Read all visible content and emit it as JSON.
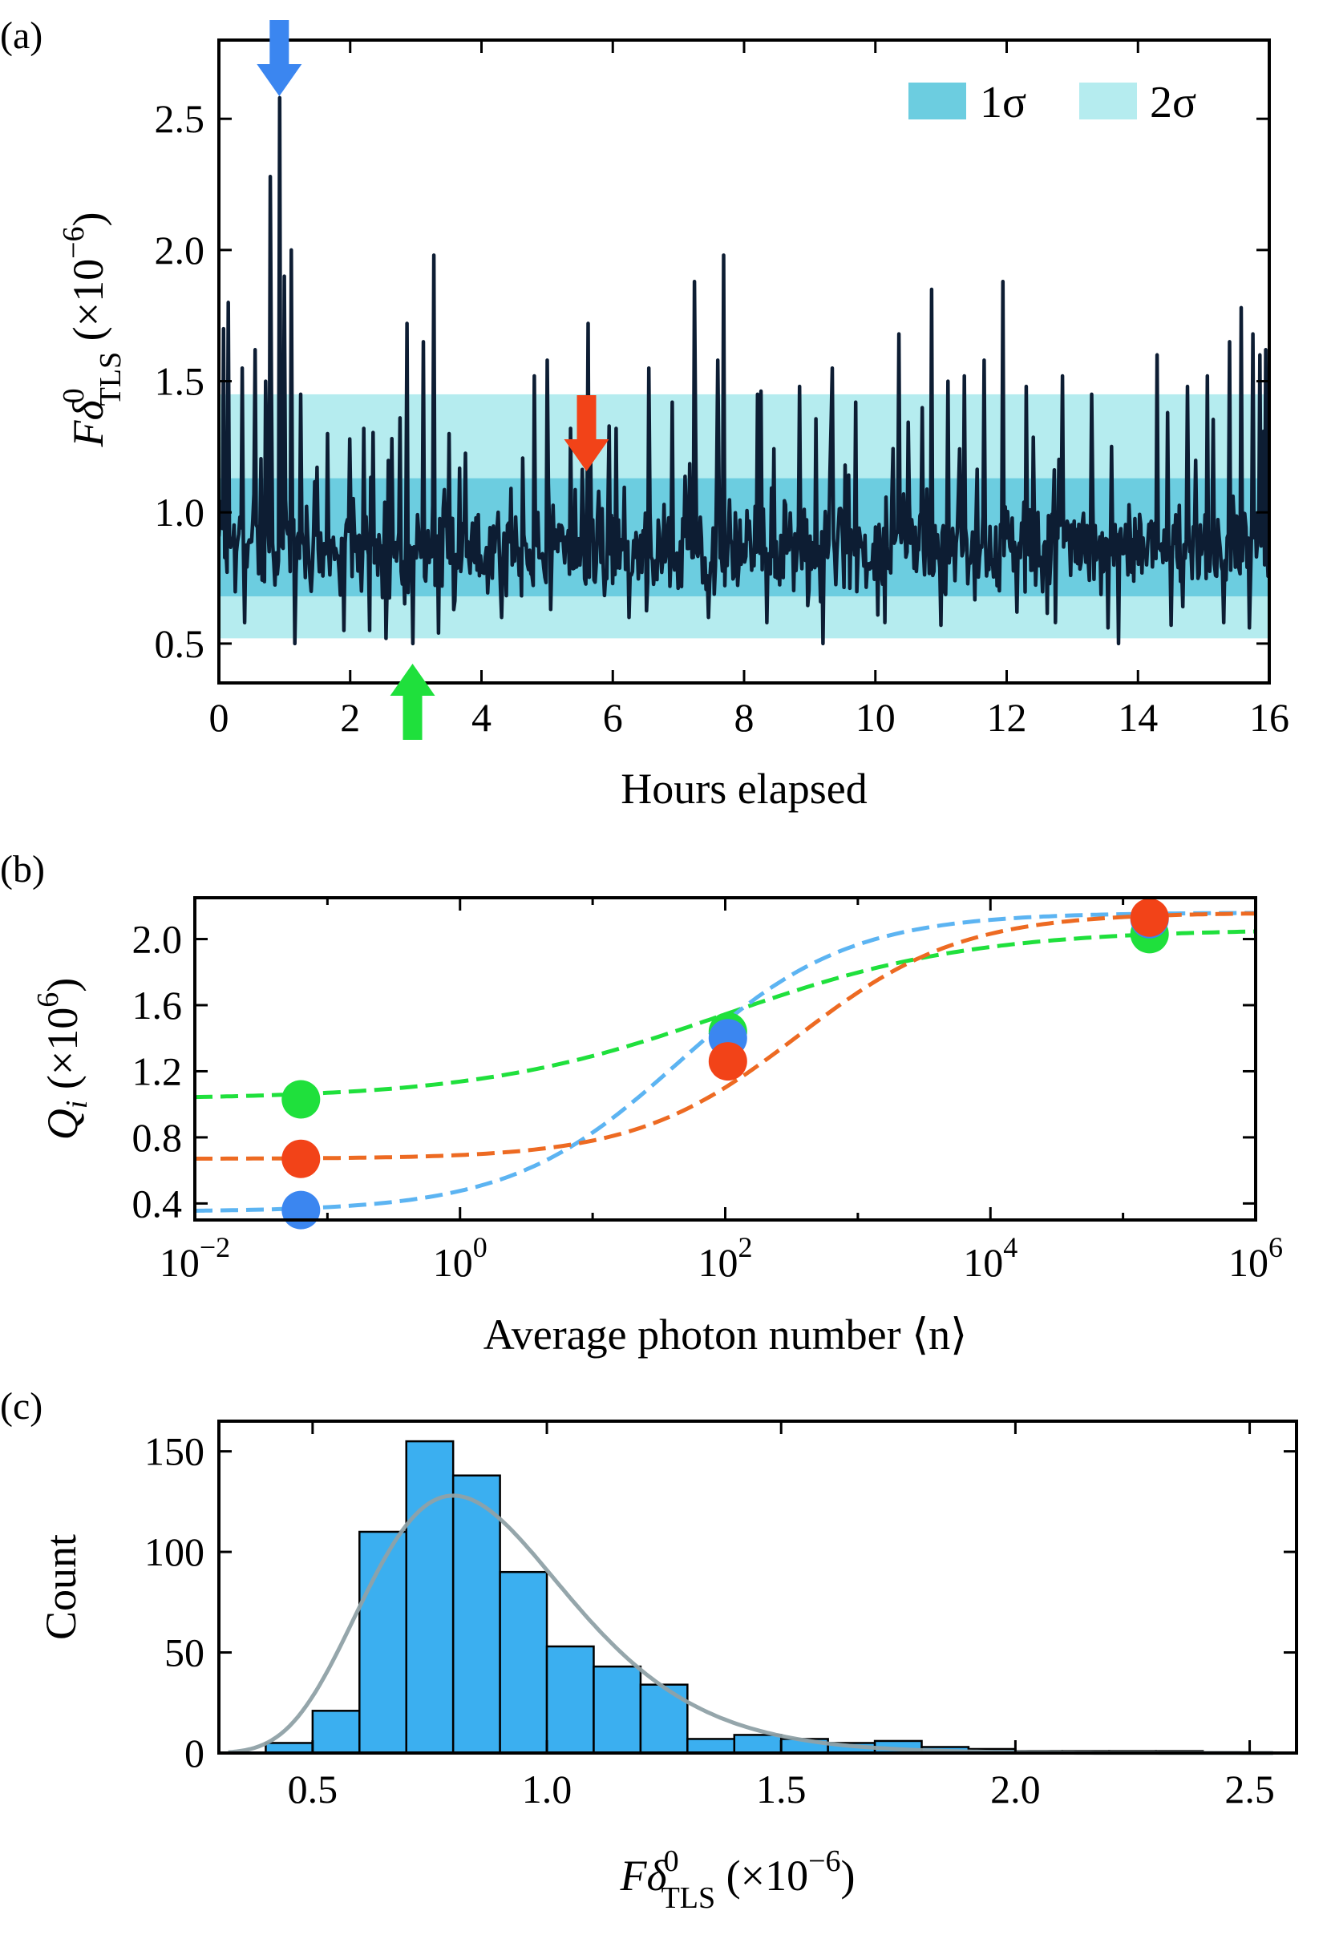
{
  "chart_data": [
    {
      "panel": "(a)",
      "type": "line",
      "xlabel": "Hours elapsed",
      "ylabel_main": "Fδ",
      "ylabel_sub": "TLS",
      "ylabel_sup": "0",
      "ylabel_unit": "(×10",
      "ylabel_unit_exp": "−6",
      "ylabel_unit_close": ")",
      "xlim": [
        0,
        16
      ],
      "ylim": [
        0.35,
        2.8
      ],
      "xticks": [
        "0",
        "2",
        "4",
        "6",
        "8",
        "10",
        "12",
        "14",
        "16"
      ],
      "yticks": [
        "0.5",
        "1.0",
        "1.5",
        "2.0",
        "2.5"
      ],
      "bands": [
        {
          "label": "2σ",
          "range": [
            0.52,
            1.45
          ],
          "color": "#b5ecef"
        },
        {
          "label": "1σ",
          "range": [
            0.68,
            1.13
          ],
          "color": "#6ccde0"
        }
      ],
      "legend_labels": [
        "1σ",
        "2σ"
      ],
      "legend_position": "top-right",
      "line_color": "#0d1d33",
      "markers": [
        {
          "x": 0.92,
          "direction": "down",
          "color": "#3b86f0"
        },
        {
          "x": 5.6,
          "direction": "down",
          "color": "#f24318"
        },
        {
          "x": 2.95,
          "direction": "up",
          "color": "#1fe03c"
        }
      ],
      "spikes": [
        [
          0.08,
          1.7
        ],
        [
          0.15,
          1.8
        ],
        [
          0.35,
          1.55
        ],
        [
          0.55,
          1.62
        ],
        [
          0.72,
          1.5
        ],
        [
          0.78,
          2.28
        ],
        [
          0.92,
          2.58
        ],
        [
          1.0,
          1.9
        ],
        [
          1.1,
          2.0
        ],
        [
          1.25,
          1.45
        ],
        [
          1.65,
          1.3
        ],
        [
          2.0,
          1.28
        ],
        [
          2.2,
          1.32
        ],
        [
          2.55,
          1.3
        ],
        [
          2.75,
          1.36
        ],
        [
          2.87,
          1.72
        ],
        [
          3.12,
          1.65
        ],
        [
          3.28,
          1.98
        ],
        [
          4.3,
          1.55
        ],
        [
          4.8,
          1.52
        ],
        [
          5.0,
          1.58
        ],
        [
          5.35,
          1.32
        ],
        [
          5.62,
          1.72
        ],
        [
          6.05,
          1.32
        ],
        [
          6.55,
          1.55
        ],
        [
          6.9,
          1.42
        ],
        [
          7.25,
          1.88
        ],
        [
          7.6,
          1.58
        ],
        [
          7.68,
          1.98
        ],
        [
          8.2,
          1.45
        ],
        [
          8.85,
          1.48
        ],
        [
          9.35,
          1.55
        ],
        [
          9.7,
          1.42
        ],
        [
          10.35,
          1.68
        ],
        [
          10.85,
          1.85
        ],
        [
          11.1,
          1.5
        ],
        [
          11.35,
          1.52
        ],
        [
          11.65,
          1.58
        ],
        [
          11.95,
          1.88
        ],
        [
          12.3,
          1.48
        ],
        [
          12.85,
          1.52
        ],
        [
          13.3,
          1.45
        ],
        [
          13.7,
          1.55
        ],
        [
          14.3,
          1.6
        ],
        [
          14.45,
          1.38
        ],
        [
          14.75,
          1.48
        ],
        [
          15.05,
          1.52
        ],
        [
          15.4,
          1.65
        ],
        [
          15.58,
          1.78
        ],
        [
          15.75,
          1.68
        ],
        [
          15.85,
          1.6
        ],
        [
          15.95,
          1.62
        ]
      ],
      "dips": [
        [
          0.4,
          0.58
        ],
        [
          1.15,
          0.5
        ],
        [
          1.9,
          0.55
        ],
        [
          2.3,
          0.55
        ],
        [
          2.55,
          0.52
        ],
        [
          2.95,
          0.5
        ],
        [
          3.35,
          0.54
        ],
        [
          4.3,
          0.6
        ],
        [
          5.05,
          0.63
        ],
        [
          6.25,
          0.6
        ],
        [
          7.45,
          0.6
        ],
        [
          8.35,
          0.58
        ],
        [
          9.2,
          0.5
        ],
        [
          10.15,
          0.58
        ],
        [
          11.0,
          0.57
        ],
        [
          12.15,
          0.62
        ],
        [
          12.75,
          0.58
        ],
        [
          13.55,
          0.56
        ],
        [
          13.7,
          0.5
        ],
        [
          14.5,
          0.57
        ],
        [
          15.3,
          0.58
        ],
        [
          15.7,
          0.56
        ]
      ],
      "baseline_mean": 0.86
    },
    {
      "panel": "(b)",
      "type": "scatter",
      "xlabel": "Average photon number ⟨n⟩",
      "ylabel_main": "Q",
      "ylabel_sub": "i",
      "ylabel_unit": "(×10",
      "ylabel_unit_exp": "6",
      "ylabel_unit_close": ")",
      "xscale": "log",
      "xlim_log10": [
        -2,
        6
      ],
      "ylim": [
        0.3,
        2.25
      ],
      "xticks_base": "10",
      "xticks_exp": [
        "−2",
        "0",
        "2",
        "4",
        "6"
      ],
      "yticks": [
        "0.4",
        "0.8",
        "1.2",
        "1.6",
        "2.0"
      ],
      "series": [
        {
          "color": "#1fe03c",
          "points_log10x": [
            [
              -1.2,
              1.03
            ],
            [
              2.02,
              1.44
            ],
            [
              5.2,
              2.03
            ]
          ],
          "fit": {
            "low": 1.03,
            "high": 2.06,
            "center_log10": 2.0,
            "width": 2.05
          }
        },
        {
          "color": "#3b86f0",
          "fit_color": "#5cb4f2",
          "points_log10x": [
            [
              -1.2,
              0.36
            ],
            [
              2.02,
              1.4
            ],
            [
              5.2,
              2.12
            ]
          ],
          "fit": {
            "low": 0.35,
            "high": 2.16,
            "center_log10": 1.65,
            "width": 1.4
          }
        },
        {
          "color": "#f24318",
          "fit_color": "#ed6a22",
          "points_log10x": [
            [
              -1.2,
              0.67
            ],
            [
              2.02,
              1.26
            ],
            [
              5.2,
              2.13
            ]
          ],
          "fit": {
            "low": 0.67,
            "high": 2.16,
            "center_log10": 2.55,
            "width": 1.35
          }
        }
      ]
    },
    {
      "panel": "(c)",
      "type": "bar",
      "xlabel_main": "Fδ",
      "xlabel_sub": "TLS",
      "xlabel_sup": "0",
      "xlabel_unit": "(×10",
      "xlabel_unit_exp": "−6",
      "xlabel_unit_close": ")",
      "ylabel": "Count",
      "xlim": [
        0.3,
        2.6
      ],
      "ylim": [
        0,
        165
      ],
      "xticks": [
        "0.5",
        "1.0",
        "1.5",
        "2.0",
        "2.5"
      ],
      "yticks": [
        "0",
        "50",
        "100",
        "150"
      ],
      "bin_width": 0.1,
      "bins_start": [
        0.4,
        0.5,
        0.6,
        0.7,
        0.8,
        0.9,
        1.0,
        1.1,
        1.2,
        1.3,
        1.4,
        1.5,
        1.6,
        1.7,
        1.8,
        1.9,
        2.0,
        2.1,
        2.2,
        2.3
      ],
      "counts": [
        5,
        21,
        110,
        155,
        138,
        90,
        53,
        43,
        34,
        7,
        9,
        7,
        5,
        6,
        3,
        2,
        1,
        1,
        1,
        1
      ],
      "bar_color": "#3baff0",
      "fit_color": "#8fa1a6",
      "fit": {
        "type": "lognormal",
        "peak_count": 128,
        "mode": 0.8,
        "sigma_log": 0.27
      }
    }
  ]
}
